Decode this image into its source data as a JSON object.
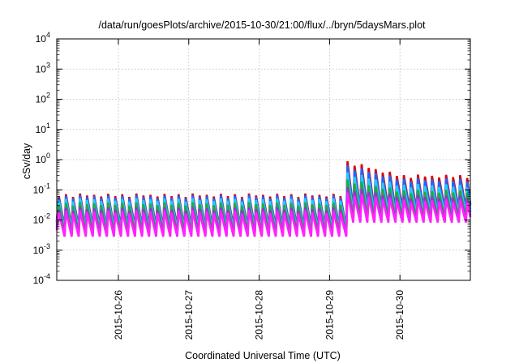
{
  "chart_data": {
    "type": "line",
    "title": "/data/run/goesPlots/archive/2015-10-30/21:00/flux/../bryn/5daysMars.plot",
    "xlabel": "Coordinated Universal Time (UTC)",
    "ylabel": "cSv/day",
    "yscale": "log",
    "ylim": [
      0.0001,
      10000
    ],
    "xlim": [
      "2015-10-25T03:00",
      "2015-10-31T00:00"
    ],
    "grid": true,
    "legend": "none",
    "y_ticks": [
      {
        "base": "10",
        "exp": "-4",
        "value": 0.0001
      },
      {
        "base": "10",
        "exp": "-3",
        "value": 0.001
      },
      {
        "base": "10",
        "exp": "-2",
        "value": 0.01
      },
      {
        "base": "10",
        "exp": "-1",
        "value": 0.1
      },
      {
        "base": "10",
        "exp": "0",
        "value": 1
      },
      {
        "base": "10",
        "exp": "1",
        "value": 10
      },
      {
        "base": "10",
        "exp": "2",
        "value": 100
      },
      {
        "base": "10",
        "exp": "3",
        "value": 1000
      },
      {
        "base": "10",
        "exp": "4",
        "value": 10000
      }
    ],
    "x_ticks": [
      {
        "label": "2015-10-26",
        "value": "2015-10-26T00:00"
      },
      {
        "label": "2015-10-27",
        "value": "2015-10-27T00:00"
      },
      {
        "label": "2015-10-28",
        "value": "2015-10-28T00:00"
      },
      {
        "label": "2015-10-29",
        "value": "2015-10-29T00:00"
      },
      {
        "label": "2015-10-30",
        "value": "2015-10-30T00:00"
      }
    ],
    "cycle_hours": 2.4,
    "step_time": "2015-10-29T05:00",
    "series": [
      {
        "color": "#dd0000",
        "min": 0.0058,
        "max": 0.068,
        "min_after": 0.022,
        "max_after": 0.29,
        "peak": 0.9
      },
      {
        "color": "#2266ff",
        "min": 0.0052,
        "max": 0.06,
        "min_after": 0.02,
        "max_after": 0.22,
        "peak": 0.65
      },
      {
        "color": "#22ccff",
        "min": 0.0045,
        "max": 0.048,
        "min_after": 0.015,
        "max_after": 0.14,
        "peak": 0.38
      },
      {
        "color": "#22aa44",
        "min": 0.0038,
        "max": 0.035,
        "min_after": 0.012,
        "max_after": 0.09,
        "peak": 0.22
      },
      {
        "color": "#9933cc",
        "min": 0.0032,
        "max": 0.024,
        "min_after": 0.0095,
        "max_after": 0.06,
        "peak": 0.12
      },
      {
        "color": "#ff22ff",
        "min": 0.0028,
        "max": 0.019,
        "min_after": 0.0082,
        "max_after": 0.045,
        "peak": 0.08
      }
    ]
  }
}
